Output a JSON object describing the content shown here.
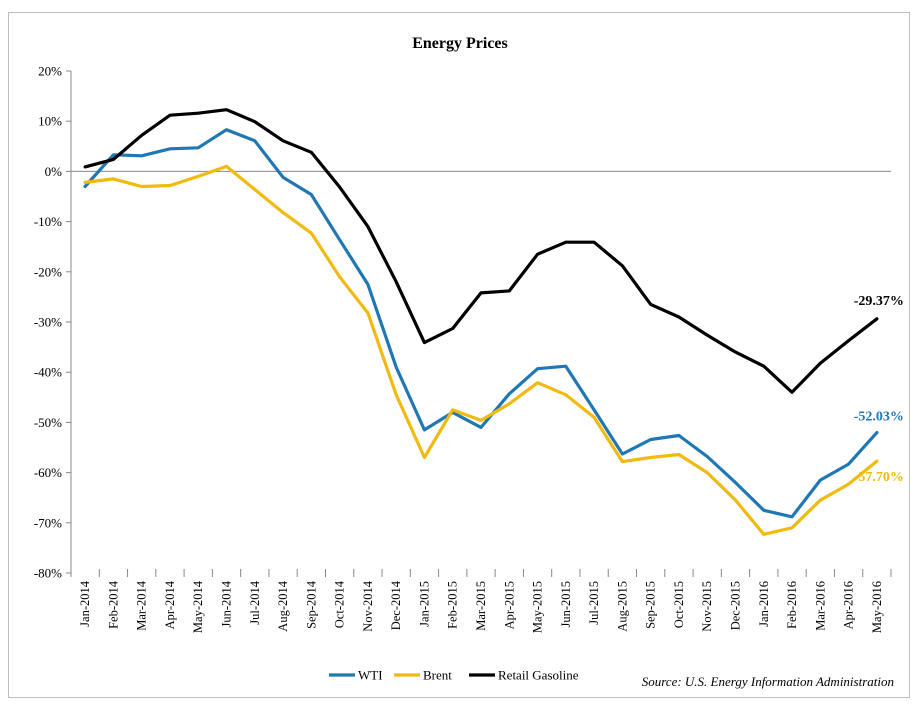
{
  "chart_data": {
    "type": "line",
    "title": "Energy Prices",
    "source": "Source: U.S. Energy Information Administration",
    "xlabel": "",
    "ylabel": "",
    "ylim": [
      -80,
      20
    ],
    "yticks": [
      "20%",
      "10%",
      "0%",
      "-10%",
      "-20%",
      "-30%",
      "-40%",
      "-50%",
      "-60%",
      "-70%",
      "-80%"
    ],
    "grid": false,
    "legend_position": "bottom",
    "categories": [
      "Jan-2014",
      "Feb-2014",
      "Mar-2014",
      "Apr-2014",
      "May-2014",
      "Jun-2014",
      "Jul-2014",
      "Aug-2014",
      "Sep-2014",
      "Oct-2014",
      "Nov-2014",
      "Dec-2014",
      "Jan-2015",
      "Feb-2015",
      "Mar-2015",
      "Apr-2015",
      "May-2015",
      "Jun-2015",
      "Jul-2015",
      "Aug-2015",
      "Sep-2015",
      "Oct-2015",
      "Nov-2015",
      "Dec-2015",
      "Jan-2016",
      "Feb-2016",
      "Mar-2016",
      "Apr-2016",
      "May-2016"
    ],
    "series": [
      {
        "name": "WTI",
        "color": "#1f77b4",
        "values": [
          -3.0,
          3.3,
          3.1,
          4.5,
          4.7,
          8.3,
          6.1,
          -1.2,
          -4.6,
          -13.6,
          -22.5,
          -39.0,
          -51.5,
          -48.0,
          -51.0,
          -44.3,
          -39.3,
          -38.8,
          -47.5,
          -56.3,
          -53.4,
          -52.6,
          -56.8,
          -62.0,
          -67.5,
          -68.8,
          -61.5,
          -58.3,
          -52.03
        ],
        "end_label": "-52.03%"
      },
      {
        "name": "Brent",
        "color": "#f2b90f",
        "values": [
          -2.2,
          -1.5,
          -3.0,
          -2.8,
          -1.0,
          1.0,
          -3.6,
          -8.2,
          -12.3,
          -21.0,
          -28.2,
          -44.5,
          -57.0,
          -47.5,
          -49.6,
          -46.3,
          -42.1,
          -44.5,
          -49.0,
          -57.8,
          -57.0,
          -56.4,
          -60.0,
          -65.5,
          -72.3,
          -71.0,
          -65.5,
          -62.3,
          -57.7
        ],
        "end_label": "-57.70%"
      },
      {
        "name": "Retail Gasoline",
        "color": "#000000",
        "values": [
          0.9,
          2.4,
          7.2,
          11.2,
          11.6,
          12.3,
          9.9,
          6.1,
          3.8,
          -3.1,
          -11.0,
          -22.0,
          -34.1,
          -31.3,
          -24.2,
          -23.8,
          -16.5,
          -14.1,
          -14.1,
          -18.8,
          -26.5,
          -29.0,
          -32.6,
          -36.0,
          -38.8,
          -44.0,
          -38.2,
          -33.7,
          -29.37
        ],
        "end_label": "-29.37%"
      }
    ]
  }
}
